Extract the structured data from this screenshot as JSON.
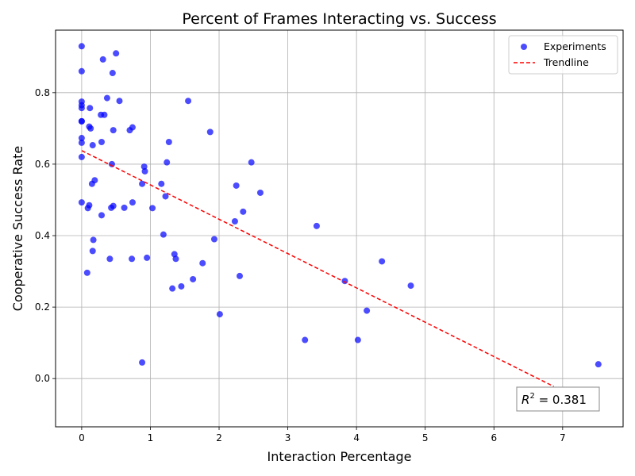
{
  "chart_data": {
    "type": "scatter",
    "title": "Percent of Frames Interacting vs. Success",
    "xlabel": "Interaction Percentage",
    "ylabel": "Cooperative Success Rate",
    "xlim": [
      -0.38,
      7.88
    ],
    "ylim": [
      -0.135,
      0.975
    ],
    "xticks": [
      0,
      1,
      2,
      3,
      4,
      5,
      6,
      7
    ],
    "yticks": [
      0.0,
      0.2,
      0.4,
      0.6,
      0.8
    ],
    "xtick_labels": [
      "0",
      "1",
      "2",
      "3",
      "4",
      "5",
      "6",
      "7"
    ],
    "ytick_labels": [
      "0.0",
      "0.2",
      "0.4",
      "0.6",
      "0.8"
    ],
    "grid": true,
    "legend_position": "top-right",
    "series": [
      {
        "name": "Experiments",
        "kind": "scatter",
        "color": "#0000ff",
        "points": [
          [
            0.0,
            0.93
          ],
          [
            0.0,
            0.86
          ],
          [
            0.0,
            0.775
          ],
          [
            0.0,
            0.765
          ],
          [
            0.0,
            0.757
          ],
          [
            0.0,
            0.72
          ],
          [
            0.0,
            0.72
          ],
          [
            0.0,
            0.673
          ],
          [
            0.0,
            0.66
          ],
          [
            0.0,
            0.62
          ],
          [
            0.0,
            0.493
          ],
          [
            0.08,
            0.296
          ],
          [
            0.09,
            0.477
          ],
          [
            0.11,
            0.485
          ],
          [
            0.11,
            0.705
          ],
          [
            0.12,
            0.757
          ],
          [
            0.13,
            0.7
          ],
          [
            0.15,
            0.545
          ],
          [
            0.16,
            0.357
          ],
          [
            0.16,
            0.653
          ],
          [
            0.17,
            0.388
          ],
          [
            0.19,
            0.555
          ],
          [
            0.28,
            0.738
          ],
          [
            0.29,
            0.662
          ],
          [
            0.29,
            0.457
          ],
          [
            0.31,
            0.893
          ],
          [
            0.33,
            0.738
          ],
          [
            0.37,
            0.785
          ],
          [
            0.41,
            0.335
          ],
          [
            0.43,
            0.478
          ],
          [
            0.44,
            0.6
          ],
          [
            0.45,
            0.855
          ],
          [
            0.46,
            0.483
          ],
          [
            0.46,
            0.695
          ],
          [
            0.5,
            0.91
          ],
          [
            0.55,
            0.777
          ],
          [
            0.62,
            0.478
          ],
          [
            0.7,
            0.695
          ],
          [
            0.73,
            0.335
          ],
          [
            0.74,
            0.493
          ],
          [
            0.74,
            0.703
          ],
          [
            0.88,
            0.545
          ],
          [
            0.88,
            0.045
          ],
          [
            0.91,
            0.593
          ],
          [
            0.92,
            0.58
          ],
          [
            0.95,
            0.338
          ],
          [
            1.03,
            0.477
          ],
          [
            1.16,
            0.545
          ],
          [
            1.19,
            0.403
          ],
          [
            1.22,
            0.51
          ],
          [
            1.24,
            0.605
          ],
          [
            1.27,
            0.662
          ],
          [
            1.32,
            0.252
          ],
          [
            1.35,
            0.348
          ],
          [
            1.37,
            0.335
          ],
          [
            1.45,
            0.258
          ],
          [
            1.55,
            0.777
          ],
          [
            1.62,
            0.278
          ],
          [
            1.76,
            0.323
          ],
          [
            1.87,
            0.69
          ],
          [
            1.93,
            0.39
          ],
          [
            2.01,
            0.18
          ],
          [
            2.23,
            0.44
          ],
          [
            2.25,
            0.54
          ],
          [
            2.3,
            0.287
          ],
          [
            2.35,
            0.467
          ],
          [
            2.47,
            0.605
          ],
          [
            2.6,
            0.52
          ],
          [
            3.25,
            0.108
          ],
          [
            3.42,
            0.427
          ],
          [
            3.83,
            0.273
          ],
          [
            4.02,
            0.108
          ],
          [
            4.15,
            0.19
          ],
          [
            4.37,
            0.328
          ],
          [
            4.79,
            0.26
          ],
          [
            7.52,
            0.04
          ]
        ]
      },
      {
        "name": "Trendline",
        "kind": "line",
        "style": "dashed",
        "color": "#ff0000",
        "x": [
          0.0,
          6.87
        ],
        "y": [
          0.638,
          -0.022
        ]
      }
    ],
    "annotation": {
      "label_prefix": "R",
      "superscript": "2",
      "label_suffix": " = 0.381",
      "position": "bottom-right"
    }
  }
}
